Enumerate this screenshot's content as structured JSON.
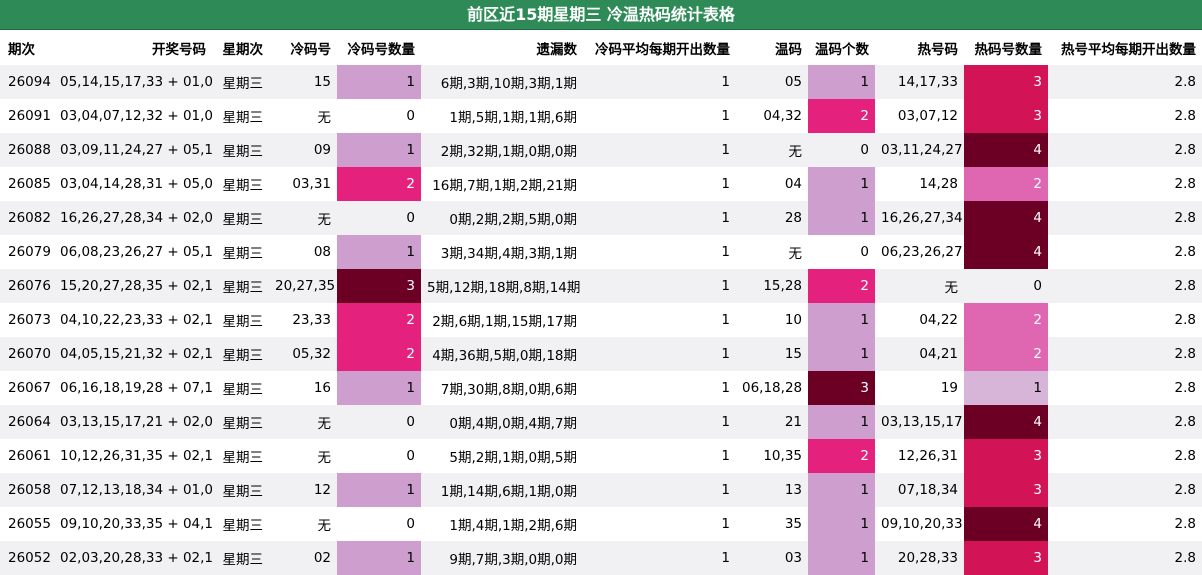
{
  "title": "前区近15期星期三 冷温热码统计表格",
  "headers": [
    "期次",
    "开奖号码",
    "星期次",
    "冷码号",
    "冷码号数量",
    "遗漏数",
    "冷码平均每期开出数量",
    "温码",
    "温码个数",
    "热号码",
    "热码号数量",
    "热号平均每期开出数量"
  ],
  "rows": [
    [
      "26094",
      "05,14,15,17,33 + 01,07",
      "星期三",
      "15",
      "1",
      "6期,3期,10期,3期,1期",
      "1",
      "05",
      "1",
      "14,17,33",
      "3",
      "2.8"
    ],
    [
      "26091",
      "03,04,07,12,32 + 01,02",
      "星期三",
      "无",
      "0",
      "1期,5期,1期,1期,6期",
      "1",
      "04,32",
      "2",
      "03,07,12",
      "3",
      "2.8"
    ],
    [
      "26088",
      "03,09,11,24,27 + 05,11",
      "星期三",
      "09",
      "1",
      "2期,32期,1期,0期,0期",
      "1",
      "无",
      "0",
      "03,11,24,27",
      "4",
      "2.8"
    ],
    [
      "26085",
      "03,04,14,28,31 + 05,07",
      "星期三",
      "03,31",
      "2",
      "16期,7期,1期,2期,21期",
      "1",
      "04",
      "1",
      "14,28",
      "2",
      "2.8"
    ],
    [
      "26082",
      "16,26,27,28,34 + 02,06",
      "星期三",
      "无",
      "0",
      "0期,2期,2期,5期,0期",
      "1",
      "28",
      "1",
      "16,26,27,34",
      "4",
      "2.8"
    ],
    [
      "26079",
      "06,08,23,26,27 + 05,12",
      "星期三",
      "08",
      "1",
      "3期,34期,4期,3期,1期",
      "1",
      "无",
      "0",
      "06,23,26,27",
      "4",
      "2.8"
    ],
    [
      "26076",
      "15,20,27,28,35 + 02,11",
      "星期三",
      "20,27,35",
      "3",
      "5期,12期,18期,8期,14期",
      "1",
      "15,28",
      "2",
      "无",
      "0",
      "2.8"
    ],
    [
      "26073",
      "04,10,22,23,33 + 02,12",
      "星期三",
      "23,33",
      "2",
      "2期,6期,1期,15期,17期",
      "1",
      "10",
      "1",
      "04,22",
      "2",
      "2.8"
    ],
    [
      "26070",
      "04,05,15,21,32 + 02,11",
      "星期三",
      "05,32",
      "2",
      "4期,36期,5期,0期,18期",
      "1",
      "15",
      "1",
      "04,21",
      "2",
      "2.8"
    ],
    [
      "26067",
      "06,16,18,19,28 + 07,11",
      "星期三",
      "16",
      "1",
      "7期,30期,8期,0期,6期",
      "1",
      "06,18,28",
      "3",
      "19",
      "1",
      "2.8"
    ],
    [
      "26064",
      "03,13,15,17,21 + 02,07",
      "星期三",
      "无",
      "0",
      "0期,4期,0期,4期,7期",
      "1",
      "21",
      "1",
      "03,13,15,17",
      "4",
      "2.8"
    ],
    [
      "26061",
      "10,12,26,31,35 + 02,12",
      "星期三",
      "无",
      "0",
      "5期,2期,1期,0期,5期",
      "1",
      "10,35",
      "2",
      "12,26,31",
      "3",
      "2.8"
    ],
    [
      "26058",
      "07,12,13,18,34 + 01,05",
      "星期三",
      "12",
      "1",
      "1期,14期,6期,1期,0期",
      "1",
      "13",
      "1",
      "07,18,34",
      "3",
      "2.8"
    ],
    [
      "26055",
      "09,10,20,33,35 + 04,11",
      "星期三",
      "无",
      "0",
      "1期,4期,1期,2期,6期",
      "1",
      "35",
      "1",
      "09,10,20,33",
      "4",
      "2.8"
    ],
    [
      "26052",
      "02,03,20,28,33 + 02,12",
      "星期三",
      "02",
      "1",
      "9期,7期,3期,0期,0期",
      "1",
      "03",
      "1",
      "20,28,33",
      "3",
      "2.8"
    ]
  ]
}
